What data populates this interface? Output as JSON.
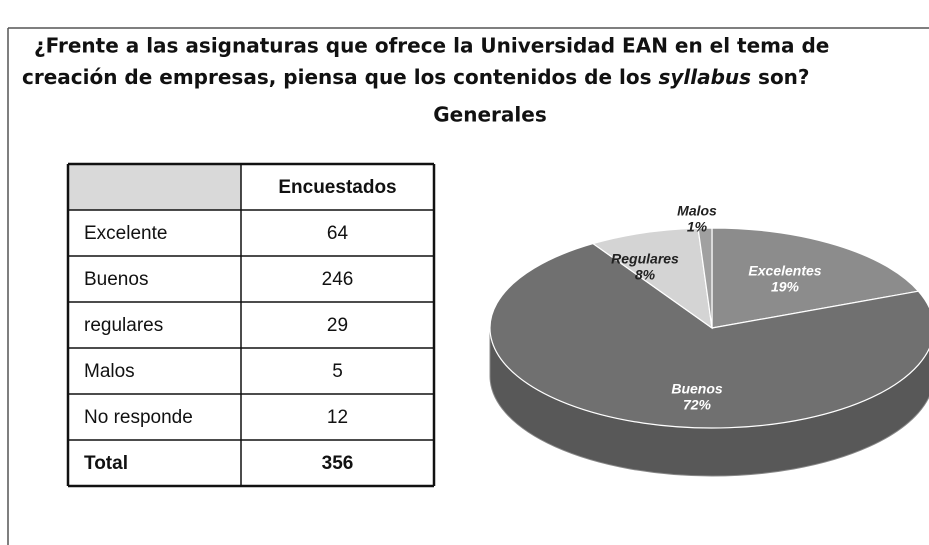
{
  "title_line1": "¿Frente a las asignaturas que ofrece la Universidad EAN en el tema de",
  "title_line2": "creación de empresas, piensa que los contenidos de los ",
  "title_italic": "syllabus",
  "title_end": " son?",
  "subtitle": "Generales",
  "table": {
    "column": "Encuestados",
    "rows": [
      {
        "label": "Excelente",
        "value": 64
      },
      {
        "label": "Buenos",
        "value": 246
      },
      {
        "label": "regulares",
        "value": 29
      },
      {
        "label": "Malos",
        "value": 5
      },
      {
        "label": "No responde",
        "value": 12
      }
    ],
    "total": {
      "label": "Total",
      "value": 356
    }
  },
  "chart_data": {
    "type": "pie",
    "categories": [
      "Excelentes",
      "Buenos",
      "Regulares",
      "Malos"
    ],
    "values": [
      19,
      72,
      8,
      1
    ],
    "value_labels": [
      "19%",
      "72%",
      "8%",
      "1%"
    ],
    "colors": [
      "#8c8c8c",
      "#707070",
      "#d4d4d4",
      "#a0a0a0"
    ]
  }
}
